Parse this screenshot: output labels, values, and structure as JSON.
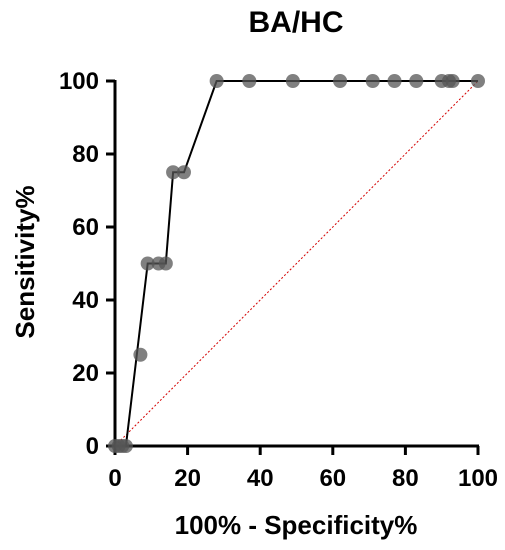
{
  "chart_data": {
    "type": "line",
    "title": "BA/HC",
    "xlabel": "100% - Specificity%",
    "ylabel": "Sensitivity%",
    "xlim": [
      0,
      100
    ],
    "ylim": [
      0,
      100
    ],
    "xticks": [
      0,
      20,
      40,
      60,
      80,
      100
    ],
    "yticks": [
      0,
      20,
      40,
      60,
      80,
      100
    ],
    "series": [
      {
        "style": "step-line-with-markers",
        "color": "#555555",
        "line_color": "#000000",
        "x": [
          0,
          1,
          2,
          3,
          7,
          9,
          12,
          14,
          16,
          19,
          28,
          37,
          49,
          62,
          71,
          77,
          83,
          90,
          92,
          93,
          100
        ],
        "y": [
          0,
          0,
          0,
          0,
          25,
          50,
          50,
          50,
          75,
          75,
          100,
          100,
          100,
          100,
          100,
          100,
          100,
          100,
          100,
          100,
          100
        ],
        "path_x": [
          0,
          3,
          9,
          14,
          16,
          19,
          28,
          100
        ],
        "path_y": [
          0,
          0,
          50,
          50,
          75,
          75,
          100,
          100
        ]
      }
    ],
    "reference_line": {
      "x": [
        0,
        100
      ],
      "y": [
        0,
        100
      ],
      "color": "#d40000",
      "style": "dotted"
    },
    "grid": false,
    "legend": "none"
  }
}
